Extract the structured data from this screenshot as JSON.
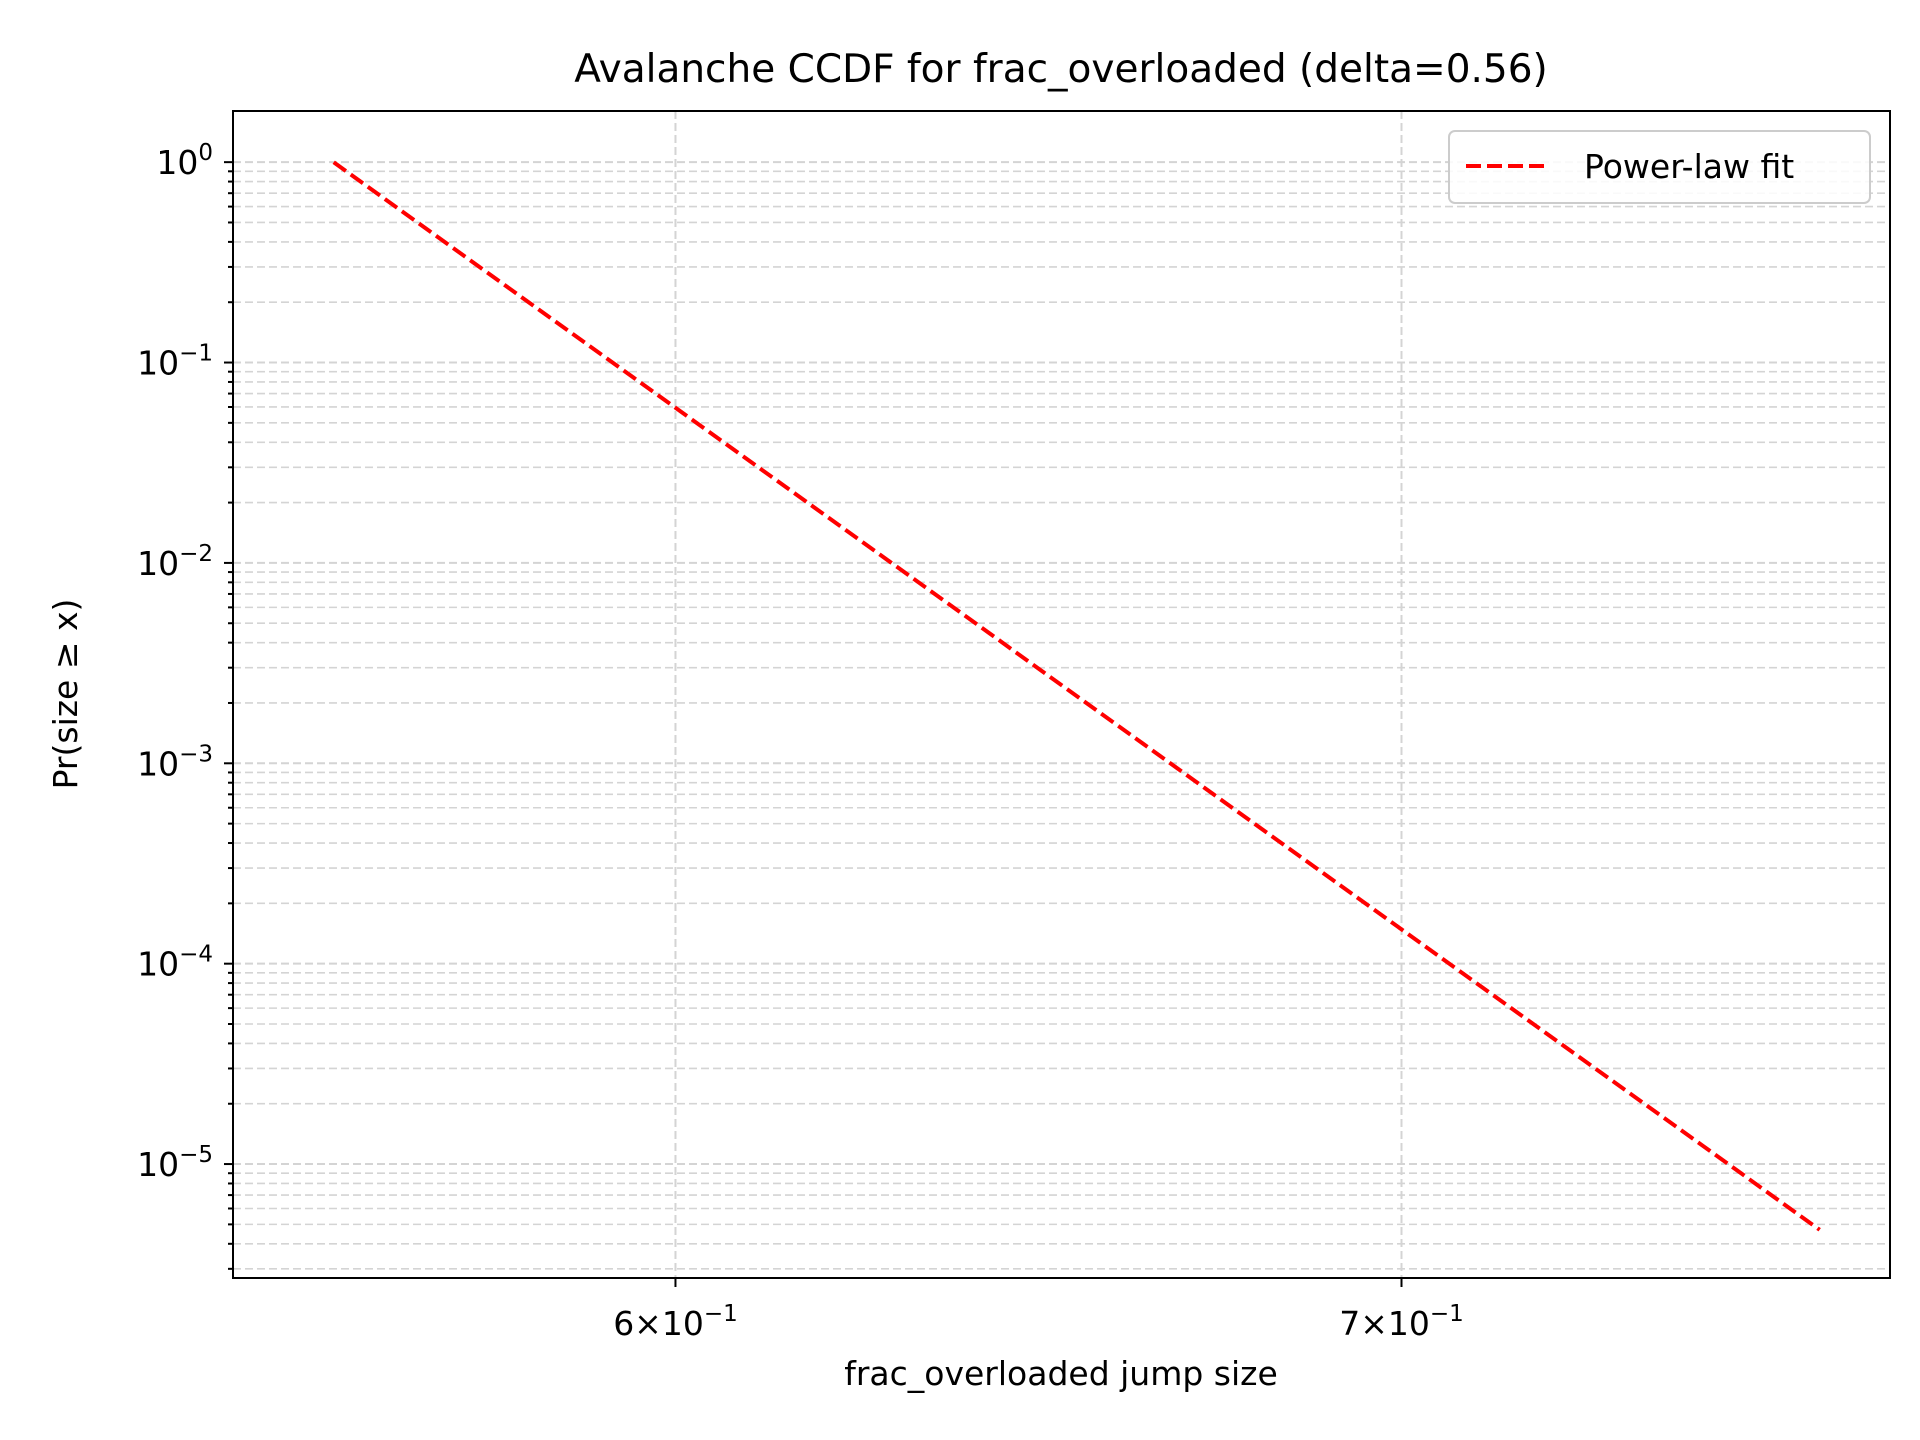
{
  "chart_data": {
    "type": "line",
    "title": "Avalanche CCDF for frac_overloaded (delta=0.56)",
    "xlabel": "frac_overloaded jump size",
    "ylabel": "Pr(size ≥ x)",
    "xscale": "log",
    "yscale": "log",
    "xlim": [
      0.5462,
      0.7765
    ],
    "ylim": [
      2.7e-06,
      1.8
    ],
    "x_ticks": [
      {
        "value": 0.6,
        "mantissa": "6",
        "exp": "−1"
      },
      {
        "value": 0.7,
        "mantissa": "7",
        "exp": "−1"
      }
    ],
    "y_ticks": [
      {
        "value": 1,
        "base": "10",
        "exp": "0"
      },
      {
        "value": 0.1,
        "base": "10",
        "exp": "−1"
      },
      {
        "value": 0.01,
        "base": "10",
        "exp": "−2"
      },
      {
        "value": 0.001,
        "base": "10",
        "exp": "−3"
      },
      {
        "value": 0.0001,
        "base": "10",
        "exp": "−4"
      },
      {
        "value": 1e-05,
        "base": "10",
        "exp": "−5"
      }
    ],
    "grid": true,
    "legend_position": "top-right",
    "series": [
      {
        "name": "Power-law fit",
        "color": "#ff0000",
        "line_style": "dashed",
        "x": [
          0.558,
          0.765
        ],
        "y": [
          1.0,
          4.7e-06
        ]
      }
    ]
  }
}
